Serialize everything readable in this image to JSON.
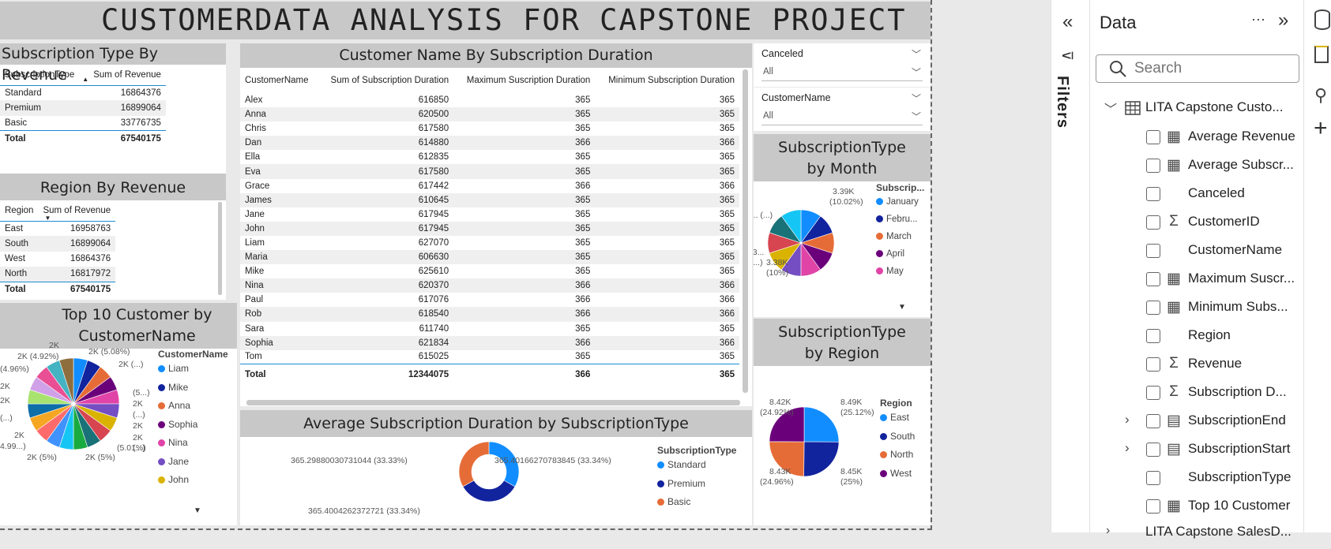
{
  "report_title": "CUSTOMERDATA ANALYSIS FOR CAPSTONE PROJECT",
  "sub_by_revenue": {
    "title": "Subscription Type By Revenue",
    "headers": [
      "SubscriptionType",
      "Sum of Revenue"
    ],
    "rows": [
      [
        "Standard",
        "16864376"
      ],
      [
        "Premium",
        "16899064"
      ],
      [
        "Basic",
        "33776735"
      ]
    ],
    "total": [
      "Total",
      "67540175"
    ]
  },
  "region_by_revenue": {
    "title": "Region By Revenue",
    "headers": [
      "Region",
      "Sum of Revenue"
    ],
    "rows": [
      [
        "East",
        "16958763"
      ],
      [
        "South",
        "16899064"
      ],
      [
        "West",
        "16864376"
      ],
      [
        "North",
        "16817972"
      ]
    ],
    "total": [
      "Total",
      "67540175"
    ]
  },
  "top10": {
    "title": "Top 10 Customer by CustomerName",
    "legend_title": "CustomerName",
    "legend": [
      "Liam",
      "Mike",
      "Anna",
      "Sophia",
      "Nina",
      "Jane",
      "John"
    ],
    "labels": [
      "2K",
      "2K (5.08%)",
      "2K (4.92%)",
      "(4.96%)",
      "2K (...)",
      "2K",
      "(5...)",
      "2K",
      "(...)",
      "2K",
      "(...)",
      "2K",
      "(5.01%)",
      "2K (5%)",
      "2K (5%)",
      "2K",
      "4.99...)",
      "2K",
      "(...)"
    ]
  },
  "duration_table": {
    "title": "Customer Name By Subscription Duration",
    "headers": [
      "CustomerName",
      "Sum of Subscription Duration",
      "Maximum Suscription Duration",
      "Minimum Subscription Duration"
    ],
    "rows": [
      [
        "Alex",
        "616850",
        "365",
        "365"
      ],
      [
        "Anna",
        "620500",
        "365",
        "365"
      ],
      [
        "Chris",
        "617580",
        "365",
        "365"
      ],
      [
        "Dan",
        "614880",
        "366",
        "366"
      ],
      [
        "Ella",
        "612835",
        "365",
        "365"
      ],
      [
        "Eva",
        "617580",
        "365",
        "365"
      ],
      [
        "Grace",
        "617442",
        "366",
        "366"
      ],
      [
        "James",
        "610645",
        "365",
        "365"
      ],
      [
        "Jane",
        "617945",
        "365",
        "365"
      ],
      [
        "John",
        "617945",
        "365",
        "365"
      ],
      [
        "Liam",
        "627070",
        "365",
        "365"
      ],
      [
        "Maria",
        "606630",
        "365",
        "365"
      ],
      [
        "Mike",
        "625610",
        "365",
        "365"
      ],
      [
        "Nina",
        "620370",
        "366",
        "366"
      ],
      [
        "Paul",
        "617076",
        "366",
        "366"
      ],
      [
        "Rob",
        "618540",
        "366",
        "366"
      ],
      [
        "Sara",
        "611740",
        "365",
        "365"
      ],
      [
        "Sophia",
        "621834",
        "366",
        "366"
      ],
      [
        "Tom",
        "615025",
        "365",
        "365"
      ]
    ],
    "total": [
      "Total",
      "12344075",
      "366",
      "365"
    ]
  },
  "avg_duration": {
    "title": "Average Subscription Duration by SubscriptionType",
    "legend_title": "SubscriptionType",
    "legend": [
      "Standard",
      "Premium",
      "Basic"
    ],
    "labels": [
      "365.29880030731044 (33.33%)",
      "365.40166270783845 (33.34%)",
      "365.4004262372721 (33.34%)"
    ]
  },
  "slicers": [
    {
      "label": "Canceled",
      "value": "All"
    },
    {
      "label": "CustomerName",
      "value": "All"
    }
  ],
  "sub_by_month": {
    "title": "SubscriptionType by Month",
    "legend_title": "Subscrip...",
    "legend": [
      "January",
      "Febru...",
      "March",
      "April",
      "May"
    ],
    "labels": [
      "3.39K",
      "(10.02%)",
      "1.... (...)",
      "3.3...",
      "(1...)",
      "3.38K",
      "(10%)"
    ]
  },
  "sub_by_region": {
    "title": "SubscriptionType by Region",
    "legend_title": "Region",
    "legend": [
      "East",
      "South",
      "North",
      "West"
    ],
    "labels": [
      "8.42K",
      "(24.92%)",
      "8.49K",
      "(25.12%)",
      "8.43K",
      "(24.96%)",
      "8.45K",
      "(25%)"
    ]
  },
  "chart_data": [
    {
      "type": "pie",
      "title": "Subscription Type By Revenue",
      "categories": [
        "Standard",
        "Premium",
        "Basic"
      ],
      "values": [
        16864376,
        16899064,
        33776735
      ]
    },
    {
      "type": "pie",
      "title": "Average Subscription Duration by SubscriptionType",
      "categories": [
        "Standard",
        "Premium",
        "Basic"
      ],
      "values": [
        365.40166270783845,
        365.4004262372721,
        365.29880030731044
      ]
    },
    {
      "type": "pie",
      "title": "SubscriptionType by Region",
      "categories": [
        "East",
        "South",
        "North",
        "West"
      ],
      "values": [
        8490,
        8450,
        8430,
        8420
      ]
    }
  ],
  "colors": {
    "blue": "#118dff",
    "navy": "#12239e",
    "orange": "#e66c37",
    "purple": "#6b007b",
    "pink": "#e044a7",
    "violet": "#744ec2",
    "yellow": "#d9b300",
    "red": "#d64550"
  },
  "filters_pane": {
    "label": "Filters"
  },
  "data_pane": {
    "title": "Data",
    "more": "···",
    "search_placeholder": "Search",
    "table_name": "LITA Capstone Custo...",
    "fields": [
      {
        "icon": "calculator-icon",
        "glyph": "▦",
        "name": "Average Revenue",
        "expand": false
      },
      {
        "icon": "calculator-icon",
        "glyph": "▦",
        "name": "Average Subscr...",
        "expand": false
      },
      {
        "icon": "none",
        "glyph": "",
        "name": "Canceled",
        "expand": false
      },
      {
        "icon": "sigma-icon",
        "glyph": "Σ",
        "name": "CustomerID",
        "expand": false
      },
      {
        "icon": "none",
        "glyph": "",
        "name": "CustomerName",
        "expand": false
      },
      {
        "icon": "calculator-icon",
        "glyph": "▦",
        "name": "Maximum Suscr...",
        "expand": false
      },
      {
        "icon": "calculator-icon",
        "glyph": "▦",
        "name": "Minimum Subs...",
        "expand": false
      },
      {
        "icon": "none",
        "glyph": "",
        "name": "Region",
        "expand": false
      },
      {
        "icon": "sigma-icon",
        "glyph": "Σ",
        "name": "Revenue",
        "expand": false
      },
      {
        "icon": "sigma-icon",
        "glyph": "Σ",
        "name": "Subscription D...",
        "expand": false
      },
      {
        "icon": "calendar-icon",
        "glyph": "▤",
        "name": "SubscriptionEnd",
        "expand": true
      },
      {
        "icon": "calendar-icon",
        "glyph": "▤",
        "name": "SubscriptionStart",
        "expand": true
      },
      {
        "icon": "none",
        "glyph": "",
        "name": "SubscriptionType",
        "expand": false
      },
      {
        "icon": "calculator-icon",
        "glyph": "▦",
        "name": "Top 10 Customer",
        "expand": false
      }
    ],
    "next_table": "LITA Capstone SalesD..."
  }
}
